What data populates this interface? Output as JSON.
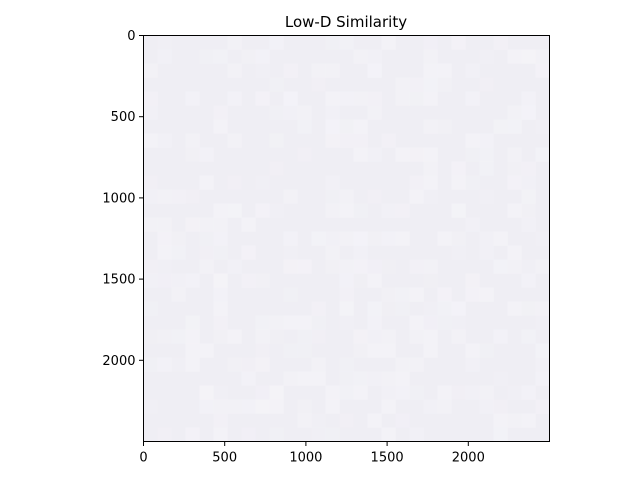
{
  "chart_data": {
    "type": "heatmap",
    "title": "Low-D Similarity",
    "xlabel": "",
    "ylabel": "",
    "xlim": [
      0,
      2500
    ],
    "ylim": [
      2500,
      0
    ],
    "x_ticks": [
      0,
      500,
      1000,
      1500,
      2000
    ],
    "y_ticks": [
      0,
      500,
      1000,
      1500,
      2000
    ],
    "x_tick_labels": [
      "0",
      "500",
      "1000",
      "1500",
      "2000"
    ],
    "y_tick_labels": [
      "0",
      "500",
      "1000",
      "1500",
      "2000"
    ],
    "matrix_size": [
      2500,
      2500
    ],
    "fill_color": "#efeef4",
    "fill_color_light": "#f3f2f7",
    "grid": false,
    "legend": "none"
  }
}
